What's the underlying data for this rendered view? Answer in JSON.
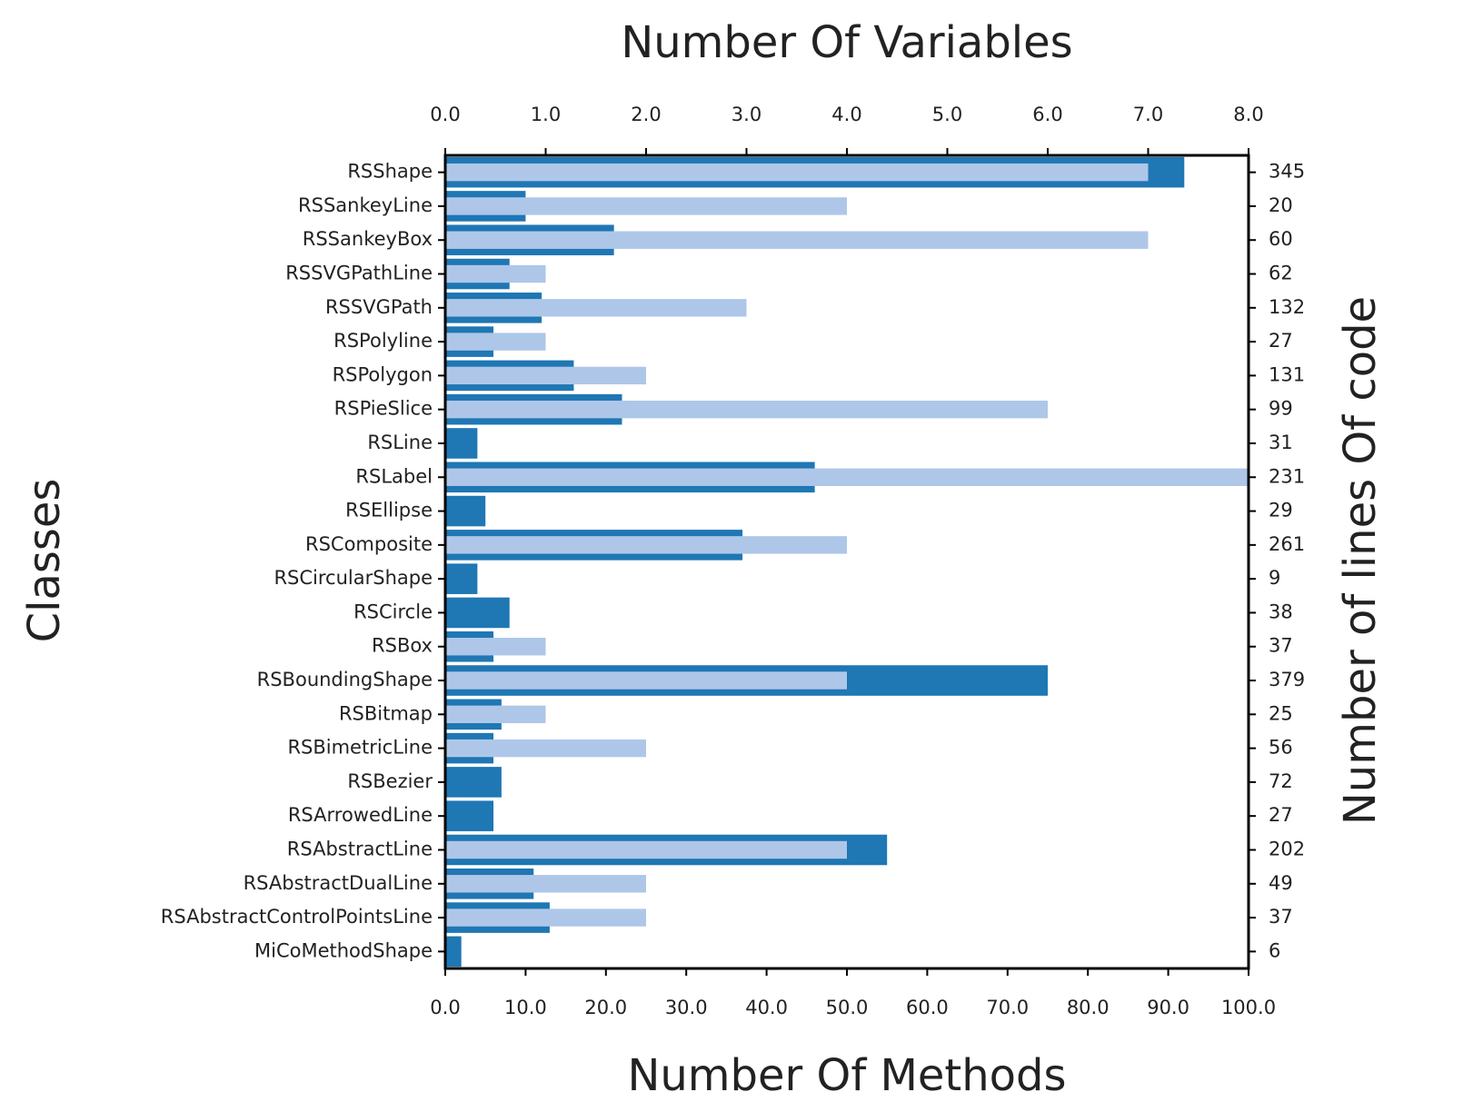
{
  "chart_data": {
    "type": "dual_hbar",
    "x_label": "Number Of Methods",
    "x2_label": "Number Of Variables",
    "y_label": "Classes",
    "y2_label": "Number of lines Of code",
    "categories": [
      "RSShape",
      "RSSankeyLine",
      "RSSankeyBox",
      "RSSVGPathLine",
      "RSSVGPath",
      "RSPolyline",
      "RSPolygon",
      "RSPieSlice",
      "RSLine",
      "RSLabel",
      "RSEllipse",
      "RSComposite",
      "RSCircularShape",
      "RSCircle",
      "RSBox",
      "RSBoundingShape",
      "RSBitmap",
      "RSBimetricLine",
      "RSBezier",
      "RSArrowedLine",
      "RSAbstractLine",
      "RSAbstractDualLine",
      "RSAbstractControlPointsLine",
      "MiCoMethodShape"
    ],
    "series": [
      {
        "name": "Number Of Methods",
        "color": "#1f77b4",
        "axis": "x",
        "values": [
          92,
          10,
          21,
          8,
          12,
          6,
          16,
          22,
          4,
          46,
          5,
          37,
          4,
          8,
          6,
          75,
          7,
          6,
          7,
          6,
          55,
          11,
          13,
          2
        ]
      },
      {
        "name": "Number Of Variables",
        "color": "#aec7e8",
        "axis": "x2",
        "values": [
          7,
          4,
          7,
          1,
          3,
          1,
          2,
          6,
          0,
          8,
          0,
          4,
          0,
          0,
          1,
          4,
          1,
          2,
          0,
          0,
          4,
          2,
          2,
          0
        ]
      }
    ],
    "lines_of_code": [
      345,
      20,
      60,
      62,
      132,
      27,
      131,
      99,
      31,
      231,
      29,
      261,
      9,
      38,
      37,
      379,
      25,
      56,
      72,
      27,
      202,
      49,
      37,
      6
    ],
    "xlim": [
      0,
      100
    ],
    "xticks": [
      {
        "value": 0,
        "label": "0.0"
      },
      {
        "value": 10,
        "label": "10.0"
      },
      {
        "value": 20,
        "label": "20.0"
      },
      {
        "value": 30,
        "label": "30.0"
      },
      {
        "value": 40,
        "label": "40.0"
      },
      {
        "value": 50,
        "label": "50.0"
      },
      {
        "value": 60,
        "label": "60.0"
      },
      {
        "value": 70,
        "label": "70.0"
      },
      {
        "value": 80,
        "label": "80.0"
      },
      {
        "value": 90,
        "label": "90.0"
      },
      {
        "value": 100,
        "label": "100.0"
      }
    ],
    "x2lim": [
      0,
      8
    ],
    "x2ticks": [
      {
        "value": 0,
        "label": "0.0"
      },
      {
        "value": 1,
        "label": "1.0"
      },
      {
        "value": 2,
        "label": "2.0"
      },
      {
        "value": 3,
        "label": "3.0"
      },
      {
        "value": 4,
        "label": "4.0"
      },
      {
        "value": 5,
        "label": "5.0"
      },
      {
        "value": 6,
        "label": "6.0"
      },
      {
        "value": 7,
        "label": "7.0"
      },
      {
        "value": 8,
        "label": "8.0"
      }
    ]
  }
}
